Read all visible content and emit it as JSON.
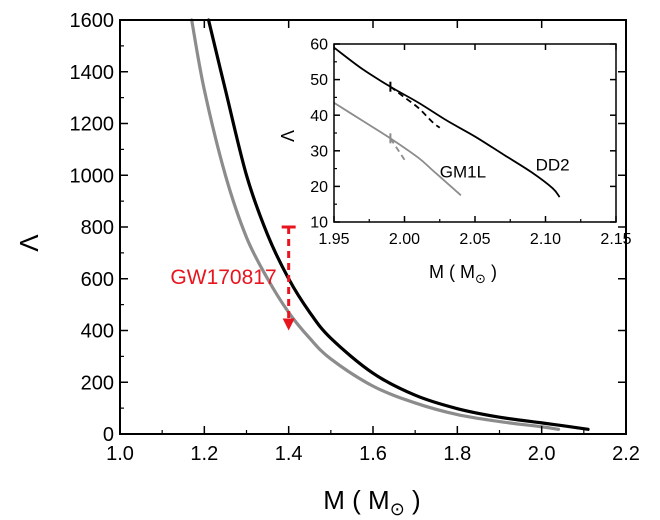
{
  "chart_data": [
    {
      "type": "line",
      "xlabel": "M ( M",
      "xlabel_sub": "⊙",
      "xlabel_close": " )",
      "ylabel": "Λ",
      "xlim": [
        1.0,
        2.2
      ],
      "ylim": [
        0,
        1600
      ],
      "xticks": [
        "1.0",
        "1.2",
        "1.4",
        "1.6",
        "1.8",
        "2.0",
        "2.2"
      ],
      "yticks": [
        "0",
        "200",
        "400",
        "600",
        "800",
        "1000",
        "1200",
        "1400",
        "1600"
      ],
      "grid": false,
      "series": [
        {
          "name": "DD2",
          "color": "#000000",
          "x": [
            1.21,
            1.25,
            1.3,
            1.35,
            1.4,
            1.45,
            1.5,
            1.6,
            1.7,
            1.8,
            1.9,
            2.0,
            2.05,
            2.11
          ],
          "y": [
            1600,
            1330,
            1000,
            770,
            600,
            470,
            370,
            235,
            150,
            98,
            65,
            43,
            32,
            18
          ]
        },
        {
          "name": "GM1L",
          "color": "#8c8c8c",
          "x": [
            1.17,
            1.2,
            1.25,
            1.3,
            1.35,
            1.4,
            1.45,
            1.5,
            1.6,
            1.7,
            1.8,
            1.9,
            2.0,
            2.04
          ],
          "y": [
            1600,
            1330,
            1000,
            760,
            600,
            470,
            370,
            290,
            185,
            120,
            75,
            48,
            28,
            18
          ]
        }
      ],
      "annotation": {
        "label": "GW170817",
        "color": "#e8141e",
        "x": 1.4,
        "y_from": 800,
        "y_to": 400
      }
    },
    {
      "type": "line",
      "inset": true,
      "xlabel": "M ( M",
      "xlabel_sub": "⊙",
      "xlabel_close": " )",
      "ylabel": "Λ",
      "xlim": [
        1.95,
        2.15
      ],
      "ylim": [
        10,
        60
      ],
      "xticks": [
        "1.95",
        "2.00",
        "2.05",
        "2.10",
        "2.15"
      ],
      "yticks": [
        "10",
        "20",
        "30",
        "40",
        "50",
        "60"
      ],
      "grid": false,
      "series": [
        {
          "name": "DD2",
          "color": "#000000",
          "style": "solid",
          "x": [
            1.95,
            1.97,
            1.99,
            2.01,
            2.03,
            2.05,
            2.07,
            2.09,
            2.105,
            2.11
          ],
          "y": [
            59,
            53,
            48,
            43.5,
            38.5,
            34,
            29,
            24,
            19.5,
            17
          ]
        },
        {
          "name": "",
          "color": "#000000",
          "style": "dashed",
          "x": [
            1.99,
            2.0,
            2.01,
            2.02,
            2.025
          ],
          "y": [
            48,
            45,
            42,
            38,
            36.5
          ]
        },
        {
          "name": "GM1L",
          "color": "#8c8c8c",
          "style": "solid",
          "x": [
            1.95,
            1.97,
            1.99,
            2.01,
            2.02,
            2.03,
            2.04
          ],
          "y": [
            43.5,
            38.5,
            33.5,
            28,
            24.5,
            21,
            17.5
          ]
        },
        {
          "name": "",
          "color": "#8c8c8c",
          "style": "dashed",
          "x": [
            1.99,
            1.995,
            2.0
          ],
          "y": [
            33.5,
            30.5,
            27.5
          ]
        }
      ]
    }
  ]
}
